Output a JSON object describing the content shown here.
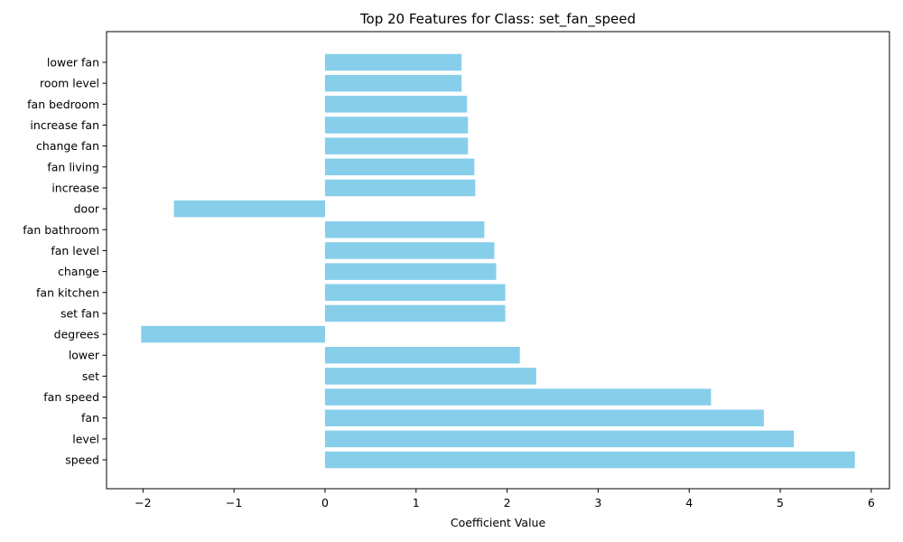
{
  "chart_data": {
    "type": "bar",
    "orientation": "horizontal",
    "title": "Top 20 Features for Class: set_fan_speed",
    "xlabel": "Coefficient Value",
    "ylabel": "",
    "xlim": [
      -2.4,
      6.2
    ],
    "xticks": [
      -2,
      -1,
      0,
      1,
      2,
      3,
      4,
      5,
      6
    ],
    "xtick_labels": [
      "−2",
      "−1",
      "0",
      "1",
      "2",
      "3",
      "4",
      "5",
      "6"
    ],
    "grid": false,
    "bar_color": "#87ceeb",
    "categories": [
      "lower fan",
      "room level",
      "fan bedroom",
      "increase fan",
      "change fan",
      "fan living",
      "increase",
      "door",
      "fan bathroom",
      "fan level",
      "change",
      "fan kitchen",
      "set fan",
      "degrees",
      "lower",
      "set",
      "fan speed",
      "fan",
      "level",
      "speed"
    ],
    "values": [
      1.5,
      1.5,
      1.56,
      1.57,
      1.57,
      1.64,
      1.65,
      -1.66,
      1.75,
      1.86,
      1.88,
      1.98,
      1.98,
      -2.02,
      2.14,
      2.32,
      4.24,
      4.82,
      5.15,
      5.82
    ]
  }
}
